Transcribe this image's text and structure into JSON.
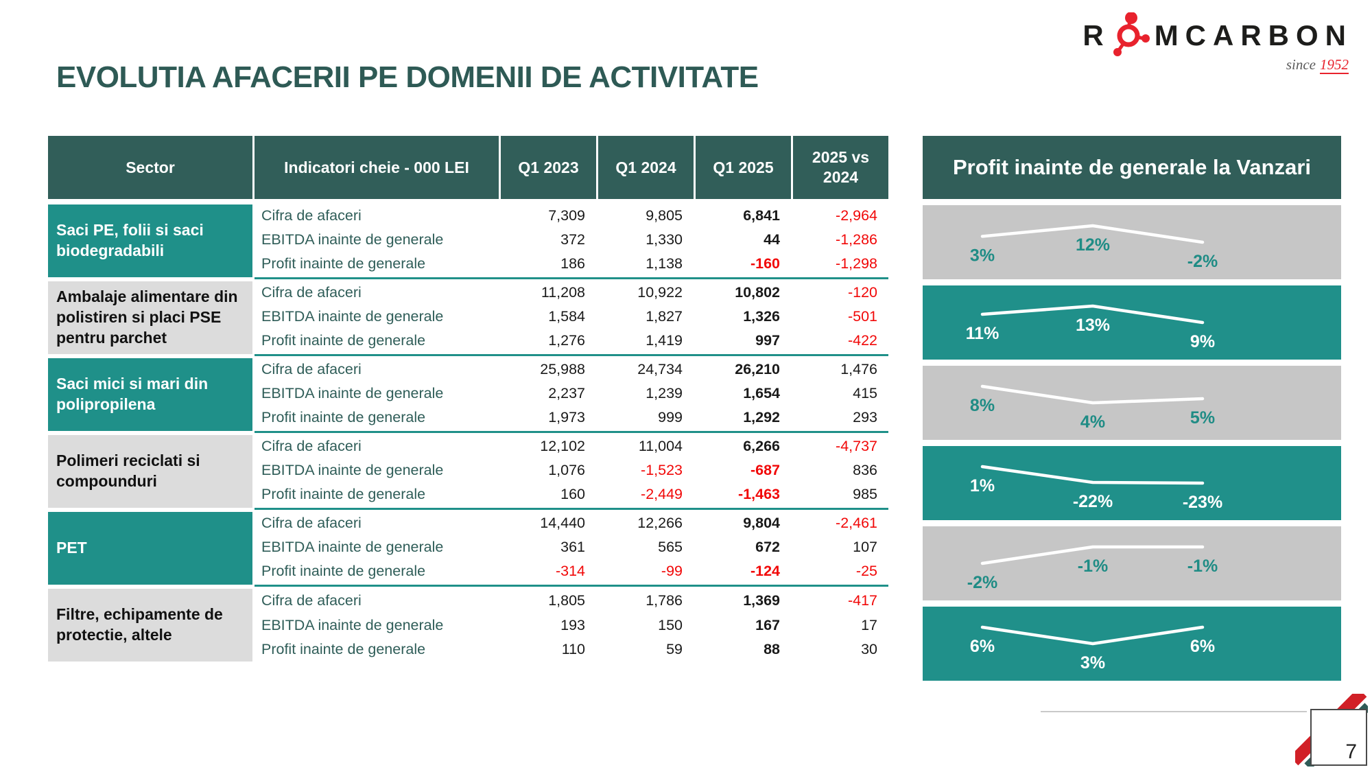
{
  "slide": {
    "title": "EVOLUTIA AFACERII PE DOMENII DE ACTIVITATE",
    "page_number": "7"
  },
  "logo": {
    "left": "R",
    "right": "MCARBON",
    "since": "since",
    "year": "1952",
    "brand_red": "#E8222D",
    "brand_black": "#1D1D1B"
  },
  "table": {
    "headers": [
      "Sector",
      "Indicatori cheie - 000 LEI",
      "Q1 2023",
      "Q1 2024",
      "Q1 2025",
      "2025 vs 2024"
    ],
    "sectors": [
      {
        "name": "Saci PE, folii si saci biodegradabili",
        "style": "teal",
        "rows": [
          {
            "label": "Cifra de afaceri",
            "values": [
              "7,309",
              "9,805",
              "6,841",
              "-2,964"
            ]
          },
          {
            "label": "EBITDA inainte de generale",
            "values": [
              "372",
              "1,330",
              "44",
              "-1,286"
            ]
          },
          {
            "label": "Profit inainte de generale",
            "values": [
              "186",
              "1,138",
              "-160",
              "-1,298"
            ]
          }
        ]
      },
      {
        "name": "Ambalaje alimentare din polistiren si placi PSE pentru parchet",
        "style": "gray",
        "rows": [
          {
            "label": "Cifra de afaceri",
            "values": [
              "11,208",
              "10,922",
              "10,802",
              "-120"
            ]
          },
          {
            "label": "EBITDA inainte de generale",
            "values": [
              "1,584",
              "1,827",
              "1,326",
              "-501"
            ]
          },
          {
            "label": "Profit inainte de generale",
            "values": [
              "1,276",
              "1,419",
              "997",
              "-422"
            ]
          }
        ]
      },
      {
        "name": "Saci mici si mari din polipropilena",
        "style": "teal",
        "rows": [
          {
            "label": "Cifra de afaceri",
            "values": [
              "25,988",
              "24,734",
              "26,210",
              "1,476"
            ]
          },
          {
            "label": "EBITDA inainte de generale",
            "values": [
              "2,237",
              "1,239",
              "1,654",
              "415"
            ]
          },
          {
            "label": "Profit inainte de generale",
            "values": [
              "1,973",
              "999",
              "1,292",
              "293"
            ]
          }
        ]
      },
      {
        "name": "Polimeri reciclati si compounduri",
        "style": "gray",
        "rows": [
          {
            "label": "Cifra de afaceri",
            "values": [
              "12,102",
              "11,004",
              "6,266",
              "-4,737"
            ]
          },
          {
            "label": "EBITDA inainte de generale",
            "values": [
              "1,076",
              "-1,523",
              "-687",
              "836"
            ]
          },
          {
            "label": "Profit inainte de generale",
            "values": [
              "160",
              "-2,449",
              "-1,463",
              "985"
            ]
          }
        ]
      },
      {
        "name": "PET",
        "style": "teal",
        "rows": [
          {
            "label": "Cifra de afaceri",
            "values": [
              "14,440",
              "12,266",
              "9,804",
              "-2,461"
            ]
          },
          {
            "label": "EBITDA inainte de generale",
            "values": [
              "361",
              "565",
              "672",
              "107"
            ]
          },
          {
            "label": "Profit inainte de generale",
            "values": [
              "-314",
              "-99",
              "-124",
              "-25"
            ]
          }
        ]
      },
      {
        "name": "Filtre, echipamente de protectie, altele",
        "style": "gray",
        "rows": [
          {
            "label": "Cifra de afaceri",
            "values": [
              "1,805",
              "1,786",
              "1,369",
              "-417"
            ]
          },
          {
            "label": "EBITDA inainte de generale",
            "values": [
              "193",
              "150",
              "167",
              "17"
            ]
          },
          {
            "label": "Profit inainte de generale",
            "values": [
              "110",
              "59",
              "88",
              "30"
            ]
          }
        ]
      }
    ]
  },
  "chart_panel": {
    "title": "Profit inainte de generale la Vanzari"
  },
  "chart_data": [
    {
      "type": "line",
      "sector": "Saci PE, folii si saci biodegradabili",
      "categories": [
        "Q1 2023",
        "Q1 2024",
        "Q1 2025"
      ],
      "values": [
        3,
        12,
        -2
      ],
      "labels": [
        "3%",
        "12%",
        "-2%"
      ],
      "band_style": "gray",
      "line_color": "#FFFFFF"
    },
    {
      "type": "line",
      "sector": "Ambalaje alimentare din polistiren si placi PSE pentru parchet",
      "categories": [
        "Q1 2023",
        "Q1 2024",
        "Q1 2025"
      ],
      "values": [
        11,
        13,
        9
      ],
      "labels": [
        "11%",
        "13%",
        "9%"
      ],
      "band_style": "teal",
      "line_color": "#FFFFFF"
    },
    {
      "type": "line",
      "sector": "Saci mici si mari din polipropilena",
      "categories": [
        "Q1 2023",
        "Q1 2024",
        "Q1 2025"
      ],
      "values": [
        8,
        4,
        5
      ],
      "labels": [
        "8%",
        "4%",
        "5%"
      ],
      "band_style": "gray",
      "line_color": "#FFFFFF"
    },
    {
      "type": "line",
      "sector": "Polimeri reciclati si compounduri",
      "categories": [
        "Q1 2023",
        "Q1 2024",
        "Q1 2025"
      ],
      "values": [
        1,
        -22,
        -23
      ],
      "labels": [
        "1%",
        "-22%",
        "-23%"
      ],
      "band_style": "teal",
      "line_color": "#FFFFFF"
    },
    {
      "type": "line",
      "sector": "PET",
      "categories": [
        "Q1 2023",
        "Q1 2024",
        "Q1 2025"
      ],
      "values": [
        -2,
        -1,
        -1
      ],
      "labels": [
        "-2%",
        "-1%",
        "-1%"
      ],
      "band_style": "gray",
      "line_color": "#FFFFFF"
    },
    {
      "type": "line",
      "sector": "Filtre, echipamente de protectie, altele",
      "categories": [
        "Q1 2023",
        "Q1 2024",
        "Q1 2025"
      ],
      "values": [
        6,
        3,
        6
      ],
      "labels": [
        "6%",
        "3%",
        "6%"
      ],
      "band_style": "teal",
      "line_color": "#FFFFFF"
    }
  ],
  "colors": {
    "header_dark": "#315E59",
    "teal": "#20908A",
    "gray_band": "#C6C6C6",
    "gray_cell": "#DCDCDC",
    "negative_red": "#F10808",
    "title_color": "#2E5A55"
  }
}
